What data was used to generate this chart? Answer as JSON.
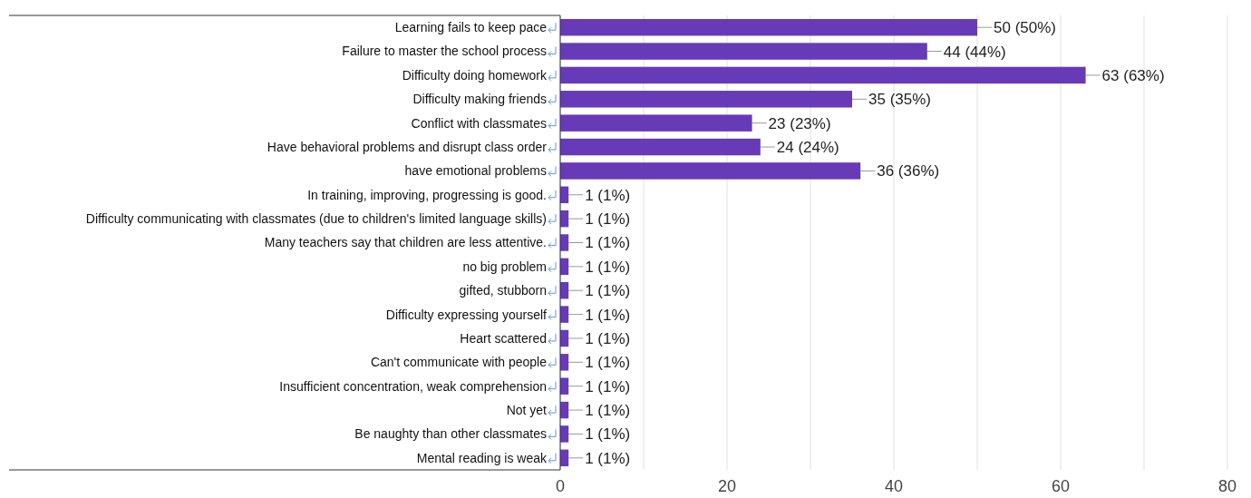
{
  "chart_data": {
    "type": "bar",
    "orientation": "horizontal",
    "categories": [
      "Learning fails to keep pace",
      "Failure to master the school process",
      "Difficulty doing homework",
      "Difficulty making friends",
      "Conflict with classmates",
      "Have behavioral problems and disrupt class order",
      "have emotional problems",
      "In training, improving, progressing is good.",
      "Difficulty communicating with classmates (due to children's limited language skills)",
      "Many teachers say that children are less attentive.",
      "no big problem",
      "gifted, stubborn",
      "Difficulty expressing yourself",
      "Heart scattered",
      "Can't communicate with people",
      "Insufficient concentration, weak comprehension",
      "Not yet",
      "Be naughty than other classmates",
      "Mental reading is weak"
    ],
    "values": [
      50,
      44,
      63,
      35,
      23,
      24,
      36,
      1,
      1,
      1,
      1,
      1,
      1,
      1,
      1,
      1,
      1,
      1,
      1
    ],
    "value_labels": [
      "50 (50%)",
      "44 (44%)",
      "63 (63%)",
      "35 (35%)",
      "23 (23%)",
      "24 (24%)",
      "36 (36%)",
      "1 (1%)",
      "1 (1%)",
      "1 (1%)",
      "1 (1%)",
      "1 (1%)",
      "1 (1%)",
      "1 (1%)",
      "1 (1%)",
      "1 (1%)",
      "1 (1%)",
      "1 (1%)",
      "1 (1%)"
    ],
    "color": "#673ab7",
    "xlim": [
      0,
      80
    ],
    "xticks": [
      0,
      {
        "value": 10,
        "label": null
      },
      20,
      {
        "value": 30,
        "label": null
      },
      40,
      {
        "value": 50,
        "label": null
      },
      60,
      {
        "value": 70,
        "label": null
      },
      80
    ],
    "grid": "x"
  }
}
